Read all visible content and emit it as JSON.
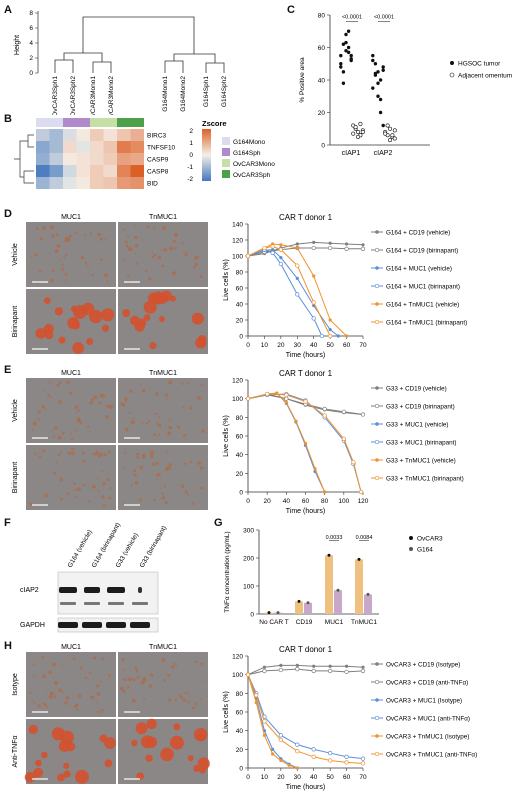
{
  "panel_letters": [
    "A",
    "B",
    "C",
    "D",
    "E",
    "F",
    "G",
    "H"
  ],
  "panelA": {
    "ylabel": "Height",
    "yticks": [
      "8",
      "6",
      "4",
      "2",
      "0"
    ],
    "leaves": [
      "OvCAR3Sph1",
      "OvCAR3Sph2",
      "OvCAR3Mono1",
      "OvCAR3Mono2",
      "G164Mono1",
      "G164Mono2",
      "G164Sph1",
      "G164Sph2"
    ]
  },
  "panelB": {
    "rows": [
      "BIRC3",
      "TNFSF10",
      "CASP9",
      "CASP8",
      "BID"
    ],
    "legend_title": "Zscore",
    "scale_ticks": [
      "2",
      "1",
      "0",
      "-1",
      "-2"
    ],
    "groups": [
      {
        "label": "G164Mono",
        "color": "#dcdcf0"
      },
      {
        "label": "G164Sph",
        "color": "#b08acb"
      },
      {
        "label": "OvCAR3Mono",
        "color": "#c5dfa6"
      },
      {
        "label": "OvCAR3Sph",
        "color": "#4fa04b"
      }
    ]
  },
  "panelC": {
    "ylabel": "% Positive area",
    "yticks": [
      "0",
      "20",
      "40",
      "60",
      "80"
    ],
    "categories": [
      "cIAP1",
      "cIAP2"
    ],
    "pvalues": [
      "<0.0001",
      "<0.0001"
    ],
    "legend": [
      "HGSOC tumor",
      "Adjacent omentum"
    ]
  },
  "micro_labels": {
    "D": {
      "cols": [
        "MUC1",
        "TnMUC1"
      ],
      "rows": [
        "Vehicle",
        "Birinapant"
      ]
    },
    "E": {
      "cols": [
        "MUC1",
        "TnMUC1"
      ],
      "rows": [
        "Vehicle",
        "Birinapant"
      ]
    },
    "H": {
      "cols": [
        "MUC1",
        "TnMUC1"
      ],
      "rows": [
        "Isotype",
        "Anti-TNFα"
      ]
    }
  },
  "panelF": {
    "lanes": [
      "G164 (vehicle)",
      "G164 (birinapant)",
      "G33 (vehicle)",
      "G33 (birinapant)"
    ],
    "rows": [
      "cIAP2",
      "GAPDH"
    ]
  },
  "panelG": {
    "ylabel": "TNFα concentration (pg/mL)",
    "yticks": [
      "0",
      "100",
      "200",
      "300"
    ],
    "categories": [
      "No CAR T",
      "CD19",
      "MUC1",
      "TnMUC1"
    ],
    "pvalues": [
      "0.0033",
      "0.0084"
    ],
    "legend": [
      "OvCAR3",
      "G164"
    ]
  },
  "chart_data": [
    {
      "id": "D",
      "type": "line",
      "title": "CAR T donor 1",
      "xlabel": "Time (hours)",
      "ylabel": "Live cells (%)",
      "xlim": [
        0,
        70
      ],
      "ylim": [
        0,
        140
      ],
      "xticks": [
        0,
        10,
        20,
        30,
        40,
        50,
        60,
        70
      ],
      "yticks": [
        0,
        20,
        40,
        60,
        80,
        100,
        120,
        140
      ],
      "series": [
        {
          "name": "G164 + CD19 (vehicle)",
          "color": "#7f7f7f",
          "marker": "filled",
          "x": [
            0,
            10,
            20,
            30,
            40,
            50,
            60,
            70
          ],
          "y": [
            100,
            103,
            110,
            115,
            117,
            116,
            115,
            114
          ]
        },
        {
          "name": "G164 + CD19 (birinapant)",
          "color": "#7f7f7f",
          "marker": "open",
          "x": [
            0,
            10,
            20,
            30,
            40,
            50,
            60,
            70
          ],
          "y": [
            100,
            105,
            108,
            110,
            110,
            110,
            109,
            109
          ]
        },
        {
          "name": "G164 + MUC1 (vehicle)",
          "color": "#5b8fd6",
          "marker": "filled",
          "x": [
            0,
            10,
            15,
            20,
            30,
            40,
            50,
            55
          ],
          "y": [
            100,
            107,
            108,
            98,
            72,
            38,
            8,
            0
          ]
        },
        {
          "name": "G164 + MUC1 (birinapant)",
          "color": "#5b8fd6",
          "marker": "open",
          "x": [
            0,
            10,
            15,
            20,
            30,
            40,
            45
          ],
          "y": [
            100,
            108,
            104,
            90,
            52,
            22,
            0
          ]
        },
        {
          "name": "G164 + TnMUC1 (vehicle)",
          "color": "#f0922d",
          "marker": "filled",
          "x": [
            0,
            10,
            15,
            20,
            30,
            40,
            50,
            60
          ],
          "y": [
            100,
            110,
            115,
            114,
            110,
            75,
            20,
            0
          ]
        },
        {
          "name": "G164 + TnMUC1 (birinapant)",
          "color": "#f0922d",
          "marker": "open",
          "x": [
            0,
            10,
            15,
            20,
            30,
            40,
            50
          ],
          "y": [
            100,
            110,
            112,
            108,
            88,
            42,
            0
          ]
        }
      ]
    },
    {
      "id": "E",
      "type": "line",
      "title": "CAR T donor 1",
      "xlabel": "Time (hours)",
      "ylabel": "Live cells (%)",
      "xlim": [
        0,
        120
      ],
      "ylim": [
        0,
        120
      ],
      "xticks": [
        0,
        20,
        40,
        60,
        80,
        100,
        120
      ],
      "yticks": [
        0,
        20,
        40,
        60,
        80,
        100,
        120
      ],
      "series": [
        {
          "name": "G33 + CD19 (vehicle)",
          "color": "#7f7f7f",
          "marker": "filled",
          "x": [
            0,
            20,
            40,
            60,
            80,
            100,
            120
          ],
          "y": [
            100,
            104,
            100,
            93,
            88,
            85,
            83
          ]
        },
        {
          "name": "G33 + CD19 (birinapant)",
          "color": "#7f7f7f",
          "marker": "open",
          "x": [
            0,
            20,
            40,
            60,
            80,
            100,
            120
          ],
          "y": [
            100,
            105,
            100,
            94,
            89,
            86,
            83
          ]
        },
        {
          "name": "G33 + MUC1 (vehicle)",
          "color": "#5b8fd6",
          "marker": "filled",
          "x": [
            0,
            20,
            30,
            40,
            50,
            60,
            70,
            80
          ],
          "y": [
            100,
            104,
            106,
            95,
            75,
            50,
            22,
            0
          ]
        },
        {
          "name": "G33 + MUC1 (birinapant)",
          "color": "#5b8fd6",
          "marker": "open",
          "x": [
            0,
            20,
            40,
            60,
            80,
            100,
            110,
            118
          ],
          "y": [
            100,
            104,
            105,
            98,
            80,
            55,
            30,
            0
          ]
        },
        {
          "name": "G33 + TnMUC1 (vehicle)",
          "color": "#f0922d",
          "marker": "filled",
          "x": [
            0,
            20,
            30,
            40,
            50,
            60,
            70,
            80
          ],
          "y": [
            100,
            105,
            106,
            96,
            76,
            52,
            25,
            0
          ]
        },
        {
          "name": "G33 + TnMUC1 (birinapant)",
          "color": "#f0922d",
          "marker": "open",
          "x": [
            0,
            20,
            40,
            60,
            80,
            100,
            110,
            118
          ],
          "y": [
            100,
            105,
            104,
            97,
            82,
            57,
            32,
            0
          ]
        }
      ]
    },
    {
      "id": "C",
      "type": "scatter",
      "ylabel": "% Positive area",
      "ylim": [
        0,
        80
      ],
      "categories": [
        "cIAP1",
        "cIAP2"
      ],
      "series": [
        {
          "name": "HGSOC tumor",
          "marker": "filled",
          "values": [
            [
              55,
              62,
              58,
              70,
              52,
              48,
              45,
              68,
              60,
              55,
              50,
              38,
              63,
              57,
              53
            ],
            [
              55,
              50,
              45,
              40,
              48,
              35,
              43,
              30,
              20,
              12,
              52,
              44,
              38,
              28,
              46
            ]
          ]
        },
        {
          "name": "Adjacent omentum",
          "marker": "open",
          "values": [
            [
              12,
              10,
              8,
              6,
              9,
              7,
              11,
              5,
              13,
              8
            ],
            [
              8,
              6,
              10,
              5,
              4,
              7,
              12,
              3,
              6,
              9
            ]
          ]
        }
      ],
      "annotations": [
        "<0.0001",
        "<0.0001"
      ]
    },
    {
      "id": "G",
      "type": "bar",
      "ylabel": "TNFα concentration (pg/mL)",
      "ylim": [
        0,
        300
      ],
      "categories": [
        "No CAR T",
        "CD19",
        "MUC1",
        "TnMUC1"
      ],
      "series": [
        {
          "name": "OvCAR3",
          "values": [
            5,
            45,
            210,
            195
          ],
          "color": "#f0c080"
        },
        {
          "name": "G164",
          "values": [
            5,
            40,
            85,
            70
          ],
          "color": "#c8a8c8"
        }
      ],
      "annotations": [
        "0.0033",
        "0.0084"
      ]
    },
    {
      "id": "H",
      "type": "line",
      "title": "CAR T donor 1",
      "xlabel": "Time (hours)",
      "ylabel": "Live cells (%)",
      "xlim": [
        0,
        70
      ],
      "ylim": [
        0,
        120
      ],
      "xticks": [
        0,
        10,
        20,
        30,
        40,
        50,
        60,
        70
      ],
      "yticks": [
        0,
        20,
        40,
        60,
        80,
        100,
        120
      ],
      "series": [
        {
          "name": "OvCAR3 + CD19 (Isotype)",
          "color": "#7f7f7f",
          "marker": "filled",
          "x": [
            0,
            10,
            20,
            30,
            40,
            50,
            60,
            70
          ],
          "y": [
            100,
            108,
            110,
            110,
            109,
            109,
            109,
            108
          ]
        },
        {
          "name": "OvCAR3 + CD19 (anti-TNFα)",
          "color": "#7f7f7f",
          "marker": "open",
          "x": [
            0,
            10,
            20,
            30,
            40,
            50,
            60,
            70
          ],
          "y": [
            100,
            104,
            105,
            106,
            104,
            104,
            103,
            104
          ]
        },
        {
          "name": "OvCAR3 + MUC1 (Isotype)",
          "color": "#5b8fd6",
          "marker": "filled",
          "x": [
            0,
            5,
            10,
            15,
            20,
            25,
            30
          ],
          "y": [
            100,
            75,
            40,
            20,
            10,
            4,
            0
          ]
        },
        {
          "name": "OvCAR3 + MUC1 (anti-TNFα)",
          "color": "#5b8fd6",
          "marker": "open",
          "x": [
            0,
            5,
            10,
            20,
            30,
            40,
            50,
            60,
            70
          ],
          "y": [
            100,
            80,
            55,
            35,
            25,
            20,
            16,
            12,
            10
          ]
        },
        {
          "name": "OvCAR3 + TnMUC1 (Isotype)",
          "color": "#f0922d",
          "marker": "filled",
          "x": [
            0,
            5,
            10,
            15,
            20,
            25,
            30
          ],
          "y": [
            100,
            70,
            35,
            15,
            8,
            3,
            0
          ]
        },
        {
          "name": "OvCAR3 + TnMUC1 (anti-TNFα)",
          "color": "#f0922d",
          "marker": "open",
          "x": [
            0,
            5,
            10,
            20,
            30,
            40,
            50,
            60,
            70
          ],
          "y": [
            100,
            78,
            50,
            30,
            18,
            12,
            8,
            6,
            5
          ]
        }
      ]
    }
  ]
}
